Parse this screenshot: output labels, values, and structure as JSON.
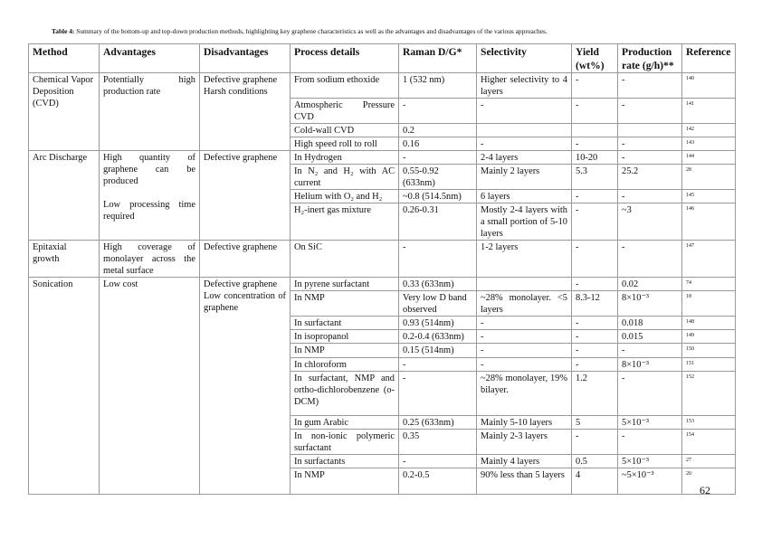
{
  "caption": {
    "label": "Table 4:",
    "text": " Summary of the bottom-up and top-down production methods, highlighting key graphene characteristics as well as the advantages and disadvantages of the various approaches."
  },
  "headers": [
    "Method",
    "Advantages",
    "Disadvantages",
    "Process details",
    "Raman D/G*",
    "Selectivity",
    "Yield (wt%)",
    "Production rate (g/h)**",
    "Reference"
  ],
  "groups": [
    {
      "method": "Chemical Vapor Deposition (CVD)",
      "advantages": [
        "Potentially high production rate"
      ],
      "disadvantages": [
        "Defective graphene",
        "Harsh conditions"
      ],
      "processes": [
        {
          "process": "From sodium ethoxide",
          "raman": "1 (532 nm)",
          "selectivity": "Higher selectivity to 4 layers",
          "yield": "-",
          "rate": "-",
          "ref": "140"
        },
        {
          "process": "Atmospheric Pressure CVD",
          "raman": "-",
          "selectivity": "-",
          "yield": "-",
          "rate": "-",
          "ref": "141"
        },
        {
          "process": "Cold-wall CVD",
          "raman": "0.2",
          "selectivity": "",
          "yield": "",
          "rate": "",
          "ref": "142"
        },
        {
          "process": "High speed roll to roll",
          "raman": "0.16",
          "selectivity": "-",
          "yield": "-",
          "rate": "-",
          "ref": "143"
        }
      ]
    },
    {
      "method": "Arc Discharge",
      "advantages": [
        "High quantity of graphene can be produced",
        "Low processing time required"
      ],
      "disadvantages": [
        "Defective graphene"
      ],
      "processes": [
        {
          "process": "In Hydrogen",
          "raman": "-",
          "selectivity": "2-4 layers",
          "yield": "10-20",
          "rate": "-",
          "ref": "144"
        },
        {
          "process": "In N₂ and H₂ with AC current",
          "raman": "0.55-0.92 (633nm)",
          "selectivity": "Mainly 2 layers",
          "yield": "5.3",
          "rate": "25.2",
          "ref": "28"
        },
        {
          "process": "Helium with O₂ and H₂",
          "raman": "~0.8 (514.5nm)",
          "selectivity": "6 layers",
          "yield": "-",
          "rate": "-",
          "ref": "145"
        },
        {
          "process": "H₂-inert gas mixture",
          "raman": "0.26-0.31",
          "selectivity": "Mostly 2-4 layers with a small portion of 5-10 layers",
          "yield": "-",
          "rate": "~3",
          "ref": "146"
        }
      ]
    },
    {
      "method": "Epitaxial growth",
      "advantages": [
        "High coverage of monolayer across the metal surface"
      ],
      "disadvantages": [
        "Defective graphene"
      ],
      "processes": [
        {
          "process": "On SiC",
          "raman": "-",
          "selectivity": "1-2 layers",
          "yield": "-",
          "rate": "-",
          "ref": "147"
        }
      ]
    },
    {
      "method": "Sonication",
      "advantages": [
        "Low cost"
      ],
      "disadvantages": [
        "Defective graphene",
        "Low concentration of graphene"
      ],
      "processes": [
        {
          "process": "In pyrene surfactant",
          "raman": "0.33 (633nm)",
          "selectivity": "",
          "yield": "-",
          "rate": "0.02",
          "ref": "74"
        },
        {
          "process": "In NMP",
          "raman": "Very low D band observed",
          "selectivity": "~28% monolayer. <5 layers",
          "yield": "8.3-12",
          "rate": "8×10⁻³",
          "ref": "18"
        },
        {
          "process": "In surfactant",
          "raman": "0.93 (514nm)",
          "selectivity": "-",
          "yield": "-",
          "rate": "0.018",
          "ref": "148"
        },
        {
          "process": "In isopropanol",
          "raman": "0.2-0.4 (633nm)",
          "selectivity": "-",
          "yield": "-",
          "rate": "0.015",
          "ref": "149"
        },
        {
          "process": "In NMP",
          "raman": "0.15 (514nm)",
          "selectivity": "-",
          "yield": "-",
          "rate": "-",
          "ref": "150"
        },
        {
          "process": "In chloroform",
          "raman": "-",
          "selectivity": "-",
          "yield": "-",
          "rate": "8×10⁻³",
          "ref": "151"
        },
        {
          "process": "In surfactant, NMP and ortho-dichlorobenzene (o-DCM)",
          "raman": "-",
          "selectivity": "~28% monolayer, 19% bilayer.",
          "yield": "1.2",
          "rate": "-",
          "ref": "152"
        },
        {
          "process": "In gum Arabic",
          "raman": "0.25 (633nm)",
          "selectivity": "Mainly 5-10 layers",
          "yield": "5",
          "rate": "5×10⁻³",
          "ref": "153"
        },
        {
          "process": "In non-ionic polymeric surfactant",
          "raman": "0.35",
          "selectivity": "Mainly 2-3 layers",
          "yield": "-",
          "rate": "-",
          "ref": "154"
        },
        {
          "process": "In surfactants",
          "raman": "-",
          "selectivity": "Mainly 4 layers",
          "yield": "0.5",
          "rate": "5×10⁻³",
          "ref": "27"
        },
        {
          "process": "In NMP",
          "raman": "0.2-0.5",
          "selectivity": "90% less than 5 layers",
          "yield": "4",
          "rate": "~5×10⁻³",
          "ref": "20"
        }
      ]
    }
  ],
  "page_number": "62"
}
